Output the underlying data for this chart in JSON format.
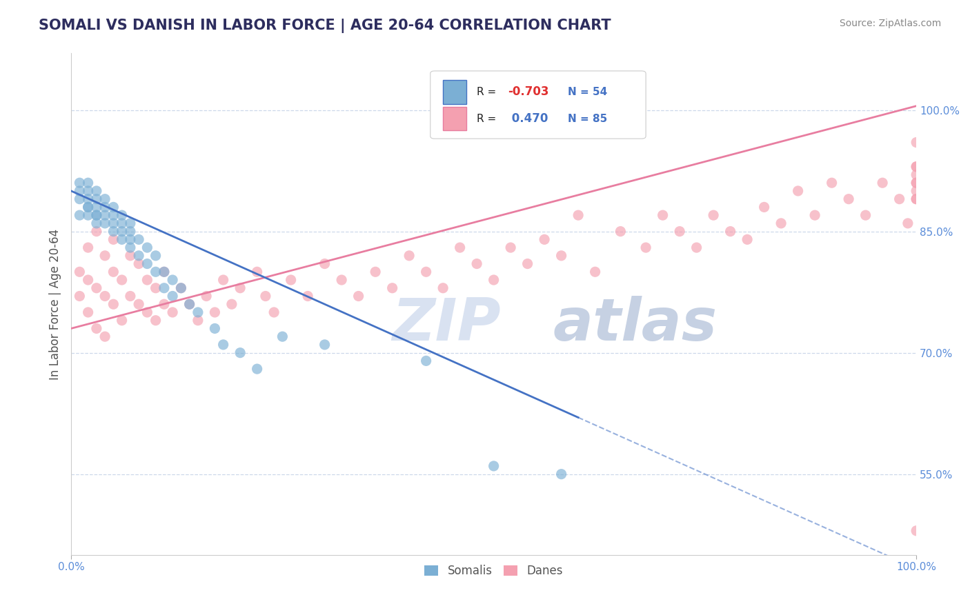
{
  "title": "SOMALI VS DANISH IN LABOR FORCE | AGE 20-64 CORRELATION CHART",
  "ylabel": "In Labor Force | Age 20-64",
  "source_text": "Source: ZipAtlas.com",
  "xlim": [
    0.0,
    1.0
  ],
  "ylim": [
    0.45,
    1.07
  ],
  "x_tick_labels": [
    "0.0%",
    "100.0%"
  ],
  "y_tick_labels": [
    "55.0%",
    "70.0%",
    "85.0%",
    "100.0%"
  ],
  "y_tick_positions": [
    0.55,
    0.7,
    0.85,
    1.0
  ],
  "legend_r_somali": "-0.703",
  "legend_n_somali": "54",
  "legend_r_danes": "0.470",
  "legend_n_danes": "85",
  "somali_color": "#7bafd4",
  "danes_color": "#f4a0b0",
  "somali_line_color": "#4472c4",
  "danes_line_color": "#e87da0",
  "background_color": "#ffffff",
  "grid_color": "#c8d4e8",
  "watermark_zip_color": "#d5dff0",
  "watermark_atlas_color": "#c0cce0",
  "title_color": "#2d2d5e",
  "source_color": "#888888",
  "tick_color": "#5b8dd9",
  "ylabel_color": "#555555",
  "somali_scatter_x": [
    0.01,
    0.01,
    0.01,
    0.01,
    0.02,
    0.02,
    0.02,
    0.02,
    0.02,
    0.02,
    0.03,
    0.03,
    0.03,
    0.03,
    0.03,
    0.03,
    0.04,
    0.04,
    0.04,
    0.04,
    0.05,
    0.05,
    0.05,
    0.05,
    0.06,
    0.06,
    0.06,
    0.06,
    0.07,
    0.07,
    0.07,
    0.07,
    0.08,
    0.08,
    0.09,
    0.09,
    0.1,
    0.1,
    0.11,
    0.11,
    0.12,
    0.12,
    0.13,
    0.14,
    0.15,
    0.17,
    0.18,
    0.2,
    0.22,
    0.25,
    0.3,
    0.42,
    0.5,
    0.58
  ],
  "somali_scatter_y": [
    0.89,
    0.91,
    0.87,
    0.9,
    0.88,
    0.9,
    0.87,
    0.89,
    0.91,
    0.88,
    0.87,
    0.89,
    0.86,
    0.88,
    0.9,
    0.87,
    0.86,
    0.88,
    0.87,
    0.89,
    0.85,
    0.87,
    0.86,
    0.88,
    0.85,
    0.87,
    0.84,
    0.86,
    0.84,
    0.86,
    0.83,
    0.85,
    0.84,
    0.82,
    0.83,
    0.81,
    0.82,
    0.8,
    0.8,
    0.78,
    0.79,
    0.77,
    0.78,
    0.76,
    0.75,
    0.73,
    0.71,
    0.7,
    0.68,
    0.72,
    0.71,
    0.69,
    0.56,
    0.55
  ],
  "danes_scatter_x": [
    0.01,
    0.01,
    0.02,
    0.02,
    0.02,
    0.03,
    0.03,
    0.03,
    0.04,
    0.04,
    0.04,
    0.05,
    0.05,
    0.05,
    0.06,
    0.06,
    0.07,
    0.07,
    0.08,
    0.08,
    0.09,
    0.09,
    0.1,
    0.1,
    0.11,
    0.11,
    0.12,
    0.13,
    0.14,
    0.15,
    0.16,
    0.17,
    0.18,
    0.19,
    0.2,
    0.22,
    0.23,
    0.24,
    0.26,
    0.28,
    0.3,
    0.32,
    0.34,
    0.36,
    0.38,
    0.4,
    0.42,
    0.44,
    0.46,
    0.48,
    0.5,
    0.52,
    0.54,
    0.56,
    0.58,
    0.6,
    0.62,
    0.65,
    0.68,
    0.7,
    0.72,
    0.74,
    0.76,
    0.78,
    0.8,
    0.82,
    0.84,
    0.86,
    0.88,
    0.9,
    0.92,
    0.94,
    0.96,
    0.98,
    0.99,
    1.0,
    1.0,
    1.0,
    1.0,
    1.0,
    1.0,
    1.0,
    1.0,
    1.0,
    1.0
  ],
  "danes_scatter_y": [
    0.8,
    0.77,
    0.83,
    0.79,
    0.75,
    0.85,
    0.78,
    0.73,
    0.82,
    0.77,
    0.72,
    0.8,
    0.76,
    0.84,
    0.79,
    0.74,
    0.77,
    0.82,
    0.76,
    0.81,
    0.75,
    0.79,
    0.74,
    0.78,
    0.76,
    0.8,
    0.75,
    0.78,
    0.76,
    0.74,
    0.77,
    0.75,
    0.79,
    0.76,
    0.78,
    0.8,
    0.77,
    0.75,
    0.79,
    0.77,
    0.81,
    0.79,
    0.77,
    0.8,
    0.78,
    0.82,
    0.8,
    0.78,
    0.83,
    0.81,
    0.79,
    0.83,
    0.81,
    0.84,
    0.82,
    0.87,
    0.8,
    0.85,
    0.83,
    0.87,
    0.85,
    0.83,
    0.87,
    0.85,
    0.84,
    0.88,
    0.86,
    0.9,
    0.87,
    0.91,
    0.89,
    0.87,
    0.91,
    0.89,
    0.86,
    0.91,
    0.89,
    0.92,
    0.9,
    0.93,
    0.91,
    0.89,
    0.93,
    0.96,
    0.48
  ],
  "somali_line_x0": 0.0,
  "somali_line_y0": 0.9,
  "somali_line_x1": 0.6,
  "somali_line_y1": 0.62,
  "somali_line_solid_end": 0.6,
  "danes_line_x0": 0.0,
  "danes_line_y0": 0.73,
  "danes_line_x1": 1.0,
  "danes_line_y1": 1.005
}
